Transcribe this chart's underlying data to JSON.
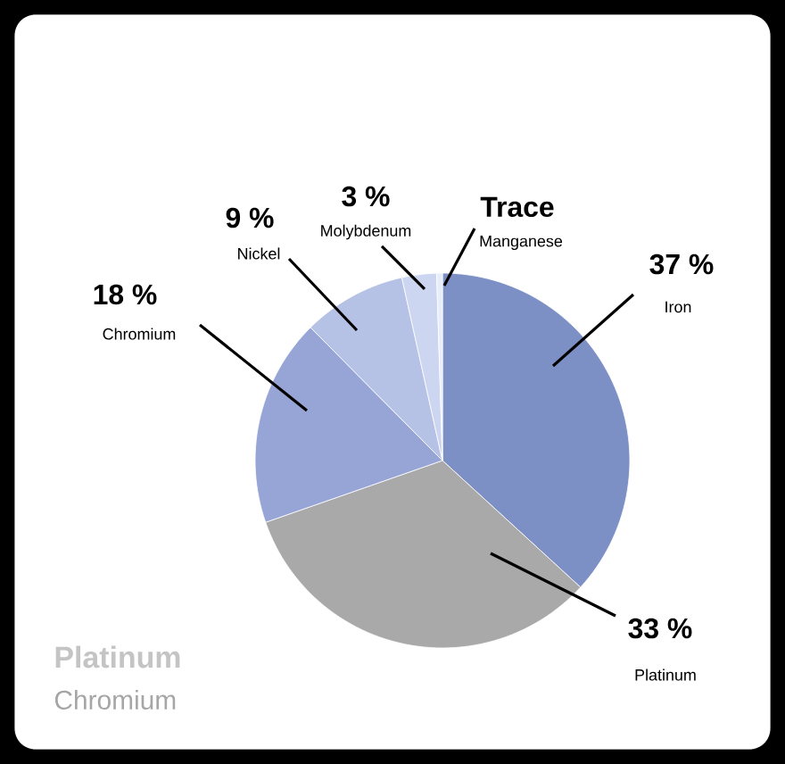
{
  "chart_data": {
    "type": "pie",
    "title": "Platinum",
    "subtitle": "Chromium",
    "categories": [
      "Iron",
      "Platinum",
      "Chromium",
      "Nickel",
      "Molybdenum",
      "Manganese"
    ],
    "values": [
      37,
      33,
      18,
      9,
      3,
      0.5
    ],
    "value_labels": [
      "37 %",
      "33 %",
      "18 %",
      "9 %",
      "3 %",
      "Trace"
    ],
    "colors": [
      "#7d90c6",
      "#a9a9a9",
      "#96a5d6",
      "#b5c1e5",
      "#cdd6f0",
      "#e8edfa"
    ]
  }
}
